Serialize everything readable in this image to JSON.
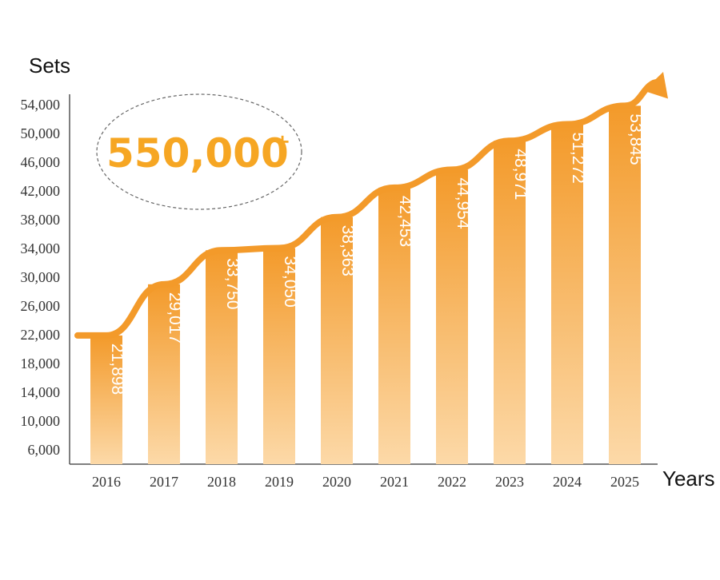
{
  "chart_data": {
    "type": "bar",
    "xlabel": "Years",
    "ylabel": "Sets",
    "categories": [
      "2016",
      "2017",
      "2018",
      "2019",
      "2020",
      "2021",
      "2022",
      "2023",
      "2024",
      "2025"
    ],
    "values": [
      21898,
      29017,
      33750,
      34050,
      38363,
      42453,
      44954,
      48971,
      51272,
      53845
    ],
    "value_labels": [
      "21,898",
      "29,017",
      "33,750",
      "34,050",
      "38,363",
      "42,453",
      "44,954",
      "48,971",
      "51,272",
      "53,845"
    ],
    "yticks": [
      6000,
      10000,
      14000,
      18000,
      22000,
      26000,
      30000,
      34000,
      38000,
      42000,
      46000,
      50000,
      54000
    ],
    "ytick_labels": [
      "6,000",
      "10,000",
      "14,000",
      "18,000",
      "22,000",
      "26,000",
      "30,000",
      "34,000",
      "38,000",
      "42,000",
      "46,000",
      "50,000",
      "54,000"
    ],
    "ylim": [
      2000,
      55500
    ],
    "grid": false,
    "trend_arrow": true,
    "annotation": {
      "text": "550,000",
      "superscript": "+"
    },
    "colors": {
      "bar_top": "#f39a2a",
      "bar_bottom": "#fcd9a8",
      "trend": "#f39a2a",
      "annotation": "#f6a623",
      "axis": "#555555"
    }
  }
}
